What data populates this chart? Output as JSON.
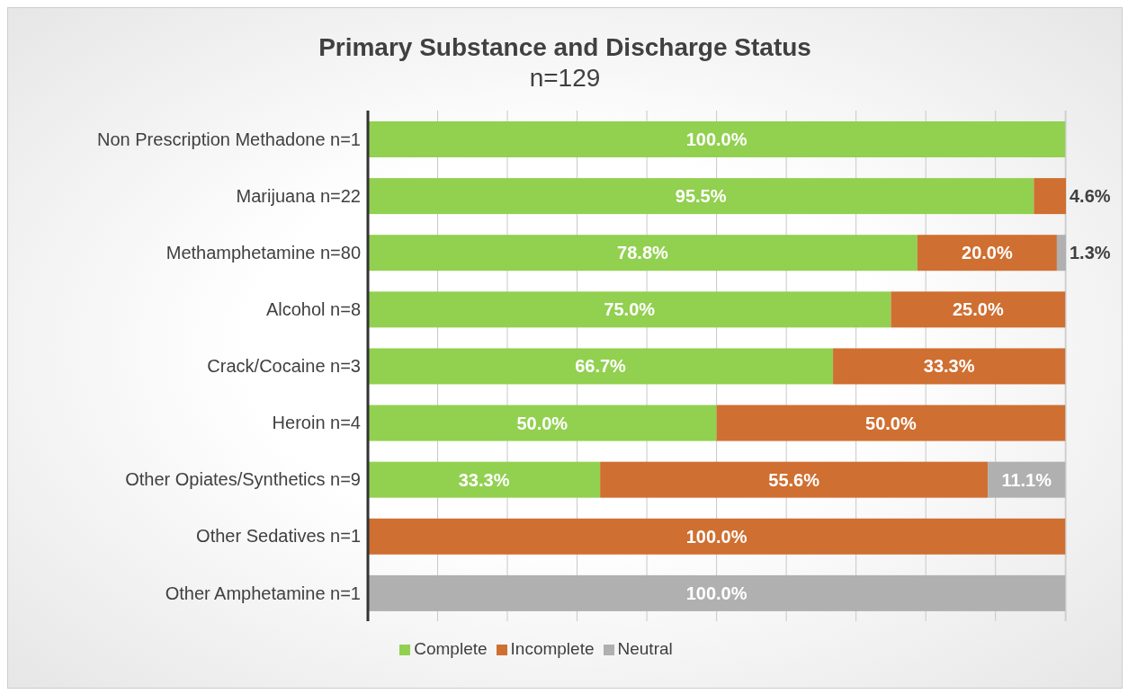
{
  "chart_data": {
    "type": "bar",
    "orientation": "horizontal",
    "stacked": true,
    "title": "Primary Substance and Discharge Status",
    "subtitle": "n=129",
    "categories": [
      "Non Prescription Methadone  n=1",
      "Marijuana  n=22",
      "Methamphetamine  n=80",
      "Alcohol  n=8",
      "Crack/Cocaine  n=3",
      "Heroin  n=4",
      "Other Opiates/Synthetics  n=9",
      "Other Sedatives  n=1",
      "Other Amphetamine  n=1"
    ],
    "series": [
      {
        "name": "Complete",
        "color": "#92d050",
        "values": [
          100.0,
          95.5,
          78.8,
          75.0,
          66.7,
          50.0,
          33.3,
          null,
          null
        ],
        "value_labels": [
          "100.0%",
          "95.5%",
          "78.8%",
          "75.0%",
          "66.7%",
          "50.0%",
          "33.3%",
          null,
          null
        ]
      },
      {
        "name": "Incomplete",
        "color": "#cf6f31",
        "values": [
          null,
          4.6,
          20.0,
          25.0,
          33.3,
          50.0,
          55.6,
          100.0,
          null
        ],
        "value_labels": [
          null,
          "4.6%",
          "20.0%",
          "25.0%",
          "33.3%",
          "50.0%",
          "55.6%",
          "100.0%",
          null
        ]
      },
      {
        "name": "Neutral",
        "color": "#b0b0b0",
        "values": [
          null,
          null,
          1.3,
          null,
          null,
          null,
          11.1,
          null,
          100.0
        ],
        "value_labels": [
          null,
          null,
          "1.3%",
          null,
          null,
          null,
          "11.1%",
          null,
          "100.0%"
        ]
      }
    ],
    "xlim": [
      0,
      100.1
    ],
    "xticks": [
      {
        "value": 0,
        "label": null
      },
      {
        "value": 10,
        "label": null
      },
      {
        "value": 20,
        "label": null
      },
      {
        "value": 30,
        "label": null
      },
      {
        "value": 40,
        "label": null
      },
      {
        "value": 50,
        "label": null
      },
      {
        "value": 60,
        "label": null
      },
      {
        "value": 70,
        "label": null
      },
      {
        "value": 80,
        "label": null
      },
      {
        "value": 90,
        "label": null
      },
      {
        "value": 100,
        "label": null
      }
    ],
    "tick_labels": "y",
    "grid": "x",
    "legend": "bottom"
  }
}
